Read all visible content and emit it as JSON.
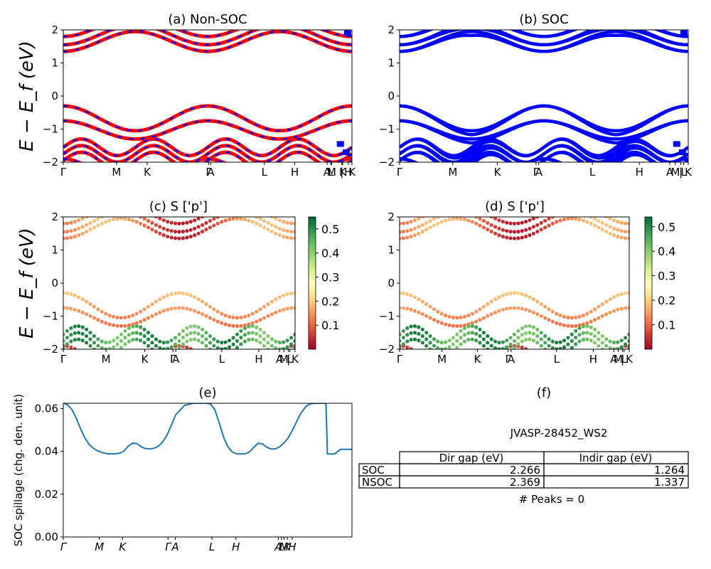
{
  "figure_title": "JVASP-28452_WS2",
  "chart_data": [
    {
      "id": "a",
      "type": "line",
      "title": "(a) Non-SOC",
      "ylabel": "E − E_f (eV)",
      "ylim": [
        -2,
        2
      ],
      "yticks": [
        "2",
        "1",
        "0",
        "−1",
        "−2"
      ],
      "xticks": [
        {
          "label": "Γ",
          "x": 0.0
        },
        {
          "label": "M",
          "x": 0.577
        },
        {
          "label": "K",
          "x": 0.91
        },
        {
          "label": "Γ",
          "x": 1.577
        },
        {
          "label": "A",
          "x": 1.6
        },
        {
          "label": "L",
          "x": 2.18
        },
        {
          "label": "H",
          "x": 2.51
        },
        {
          "label": "A",
          "x": 2.86
        },
        {
          "label": "L",
          "x": 2.9
        },
        {
          "label": "M",
          "x": 2.91
        },
        {
          "label": "|",
          "x": 3.02
        },
        {
          "label": "K",
          "x": 3.03
        },
        {
          "label": "H",
          "x": 3.09
        },
        {
          "label": "K",
          "x": 3.13
        }
      ],
      "xmax": 3.13,
      "series": [
        {
          "name": "",
          "color": "#ff0000",
          "width": 5,
          "bands": "valence+conduction"
        },
        {
          "name": "",
          "color": "#0000ff",
          "width": 2.5,
          "dashed": true,
          "bands": "valence+conduction"
        }
      ]
    },
    {
      "id": "b",
      "type": "line",
      "title": "(b) SOC",
      "ylim": [
        -2,
        2
      ],
      "yticks": [
        "2",
        "1",
        "0",
        "−1",
        "−2"
      ],
      "xticks": [
        {
          "label": "Γ",
          "x": 0.0
        },
        {
          "label": "M",
          "x": 0.577
        },
        {
          "label": "K",
          "x": 1.06
        },
        {
          "label": "Γ",
          "x": 1.48
        },
        {
          "label": "A",
          "x": 1.51
        },
        {
          "label": "L",
          "x": 2.09
        },
        {
          "label": "H",
          "x": 2.6
        },
        {
          "label": "A",
          "x": 2.93
        },
        {
          "label": "M",
          "x": 2.99
        },
        {
          "label": "|",
          "x": 3.05
        },
        {
          "label": "L",
          "x": 3.08
        },
        {
          "label": "K",
          "x": 3.13
        }
      ],
      "xmax": 3.13,
      "series": [
        {
          "name": "",
          "color": "#0000ff",
          "width": 4.5,
          "bands": "valence+conduction (split)"
        }
      ]
    },
    {
      "id": "c",
      "type": "scatter",
      "title": "(c)  S ['p']",
      "ylabel": "E − E_f (eV)",
      "ylim": [
        -2,
        2
      ],
      "yticks": [
        "2",
        "1",
        "0",
        "−1",
        "−2"
      ],
      "colorbar": {
        "cmap": "RdYlGn",
        "min": 0.0,
        "max": 0.55,
        "ticks": [
          "0.5",
          "0.4",
          "0.3",
          "0.2",
          "0.1"
        ]
      },
      "xticks": [
        {
          "label": "Γ",
          "x": 0.0
        },
        {
          "label": "M",
          "x": 0.577
        },
        {
          "label": "K",
          "x": 1.1
        },
        {
          "label": "Γ",
          "x": 1.48
        },
        {
          "label": "A",
          "x": 1.52
        },
        {
          "label": "L",
          "x": 2.14
        },
        {
          "label": "H",
          "x": 2.64
        },
        {
          "label": "A",
          "x": 2.92
        },
        {
          "label": "M",
          "x": 2.98
        },
        {
          "label": "|",
          "x": 3.04
        },
        {
          "label": "L",
          "x": 3.06
        },
        {
          "label": "K",
          "x": 3.13
        }
      ],
      "xmax": 3.13
    },
    {
      "id": "d",
      "type": "scatter",
      "title": "(d) S ['p']",
      "ylim": [
        -2,
        2
      ],
      "yticks": [
        "2",
        "1",
        "0",
        "−1",
        "−2"
      ],
      "colorbar": {
        "cmap": "RdYlGn",
        "min": 0.0,
        "max": 0.54,
        "ticks": [
          "0.5",
          "0.4",
          "0.3",
          "0.2",
          "0.1"
        ]
      },
      "xticks": [
        {
          "label": "Γ",
          "x": 0.0
        },
        {
          "label": "M",
          "x": 0.577
        },
        {
          "label": "K",
          "x": 1.06
        },
        {
          "label": "Γ",
          "x": 1.48
        },
        {
          "label": "A",
          "x": 1.52
        },
        {
          "label": "L",
          "x": 2.14
        },
        {
          "label": "H",
          "x": 2.64
        },
        {
          "label": "A",
          "x": 2.92
        },
        {
          "label": "M",
          "x": 2.98
        },
        {
          "label": "|",
          "x": 3.04
        },
        {
          "label": "L",
          "x": 3.06
        },
        {
          "label": "K",
          "x": 3.13
        }
      ],
      "xmax": 3.13
    },
    {
      "id": "e",
      "type": "line",
      "title": "(e)",
      "ylabel": "SOC spillage (chg. den. unit)",
      "ylim": [
        0.0,
        0.0625
      ],
      "yticks": [
        "0.06",
        "0.04",
        "0.02",
        "0.00"
      ],
      "ytick_values": [
        0.06,
        0.04,
        0.02,
        0.0
      ],
      "xmax": 100,
      "xticks": [
        {
          "label": "Γ",
          "x": 0
        },
        {
          "label": "M",
          "x": 12.5
        },
        {
          "label": "K",
          "x": 20.5
        },
        {
          "label": "Γ",
          "x": 36.3
        },
        {
          "label": "A",
          "x": 38.8
        },
        {
          "label": "L",
          "x": 51.5
        },
        {
          "label": "H",
          "x": 59.8
        },
        {
          "label": "A",
          "x": 74.5
        },
        {
          "label": "L",
          "x": 75.6
        },
        {
          "label": "M",
          "x": 76.5
        },
        {
          "label": "K",
          "x": 77.6
        },
        {
          "label": "H",
          "x": 79.3
        }
      ],
      "series": [
        {
          "name": "",
          "color": "#1f77b4",
          "x": [
            0,
            1.5,
            3,
            4.5,
            6,
            7.5,
            9,
            10.5,
            12,
            13.5,
            15,
            16.5,
            18,
            19.5,
            21,
            22.5,
            24,
            25.5,
            27,
            28.5,
            30,
            31.5,
            33,
            34.5,
            36,
            37.5,
            39,
            42,
            45,
            48,
            49.5,
            51,
            52.5,
            54,
            55.5,
            57,
            58.5,
            60,
            61.5,
            63,
            64.5,
            66,
            67.5,
            69,
            70.5,
            72,
            73.5,
            75,
            76.5,
            78,
            79.5,
            81,
            82.5,
            84,
            85.5,
            87,
            90,
            91,
            91.5,
            94,
            96,
            100
          ],
          "y": [
            0.0625,
            0.0618,
            0.0595,
            0.0555,
            0.0505,
            0.0462,
            0.0432,
            0.0414,
            0.0402,
            0.0395,
            0.039,
            0.0388,
            0.0389,
            0.0392,
            0.0402,
            0.0425,
            0.0438,
            0.0437,
            0.0422,
            0.0413,
            0.0412,
            0.0415,
            0.0425,
            0.0445,
            0.0478,
            0.0525,
            0.0572,
            0.0615,
            0.0625,
            0.0625,
            0.0625,
            0.0622,
            0.0595,
            0.0535,
            0.0468,
            0.0422,
            0.0398,
            0.0389,
            0.0388,
            0.0389,
            0.0398,
            0.042,
            0.0438,
            0.0435,
            0.042,
            0.0411,
            0.0412,
            0.0422,
            0.044,
            0.0465,
            0.0502,
            0.0545,
            0.0582,
            0.0609,
            0.0622,
            0.0625,
            0.0625,
            0.0625,
            0.0388,
            0.0388,
            0.041,
            0.041
          ]
        }
      ]
    },
    {
      "id": "f",
      "type": "table",
      "title": "(f)",
      "columns": [
        "",
        "Dir gap (eV)",
        "Indir gap (eV)"
      ],
      "rows": [
        [
          "SOC",
          "2.266",
          "1.264"
        ],
        [
          "NSOC",
          "2.369",
          "1.337"
        ]
      ],
      "footer": "# Peaks = 0"
    }
  ]
}
